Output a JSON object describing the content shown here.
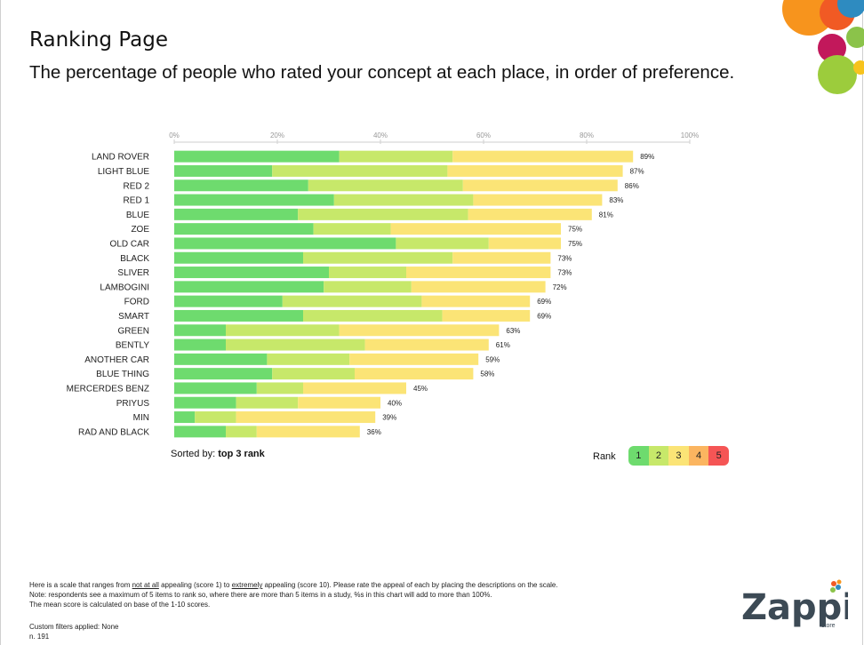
{
  "page": {
    "title": "Ranking Page",
    "subtitle": "The percentage of people who rated your concept at each place, in order of preference."
  },
  "colors": {
    "rank1": "#6edb6e",
    "rank2": "#c7e86a",
    "rank3": "#fbe476",
    "rank4": "#fbb560",
    "rank5": "#f55555",
    "axis": "#999999",
    "logo_text": "#3c4a55"
  },
  "chart_data": {
    "type": "bar",
    "orientation": "horizontal",
    "stacked": true,
    "xlim": [
      0,
      100
    ],
    "x_ticks": [
      "0%",
      "20%",
      "40%",
      "60%",
      "80%",
      "100%"
    ],
    "categories": [
      "LAND ROVER",
      "LIGHT BLUE",
      "RED 2",
      "RED 1",
      "BLUE",
      "ZOE",
      "OLD CAR",
      "BLACK",
      "SLIVER",
      "LAMBOGINI",
      "FORD",
      "SMART",
      "GREEN",
      "BENTLY",
      "ANOTHER CAR",
      "BLUE THING",
      "MERCERDES BENZ",
      "PRIYUS",
      "MIN",
      "RAD AND BLACK"
    ],
    "series": [
      {
        "name": "1",
        "values": [
          32,
          19,
          26,
          31,
          24,
          27,
          43,
          25,
          30,
          29,
          21,
          25,
          10,
          10,
          18,
          19,
          16,
          12,
          4,
          10
        ]
      },
      {
        "name": "2",
        "values": [
          22,
          34,
          30,
          27,
          33,
          15,
          18,
          29,
          15,
          17,
          27,
          27,
          22,
          27,
          16,
          16,
          9,
          12,
          8,
          6
        ]
      },
      {
        "name": "3",
        "values": [
          35,
          34,
          30,
          25,
          24,
          33,
          14,
          19,
          28,
          26,
          21,
          17,
          31,
          24,
          25,
          23,
          20,
          16,
          27,
          20
        ]
      }
    ],
    "data_labels": [
      "89%",
      "87%",
      "86%",
      "83%",
      "81%",
      "75%",
      "75%",
      "73%",
      "73%",
      "72%",
      "69%",
      "69%",
      "63%",
      "61%",
      "59%",
      "58%",
      "45%",
      "40%",
      "39%",
      "36%"
    ]
  },
  "sorted_by": {
    "label": "Sorted by:",
    "value": "top 3 rank"
  },
  "legend": {
    "title": "Rank",
    "items": [
      "1",
      "2",
      "3",
      "4",
      "5"
    ]
  },
  "notes": {
    "line1_a": "Here is a scale that ranges from ",
    "line1_b": "not at all",
    "line1_c": " appealing (score 1) to ",
    "line1_d": "extremely",
    "line1_e": " appealing (score 10). Please rate the appeal of each by placing the descriptions on the scale.",
    "line2": "Note: respondents see a maximum of 5 items to rank so, where there are more than 5 items in a study, %s in this chart will add to more than 100%.",
    "line3": "The mean score is calculated on base of the 1-10 scores.",
    "filters": "Custom filters applied: None",
    "base": "n. 191"
  },
  "logo": {
    "name": "Zappi",
    "sub": "store"
  }
}
